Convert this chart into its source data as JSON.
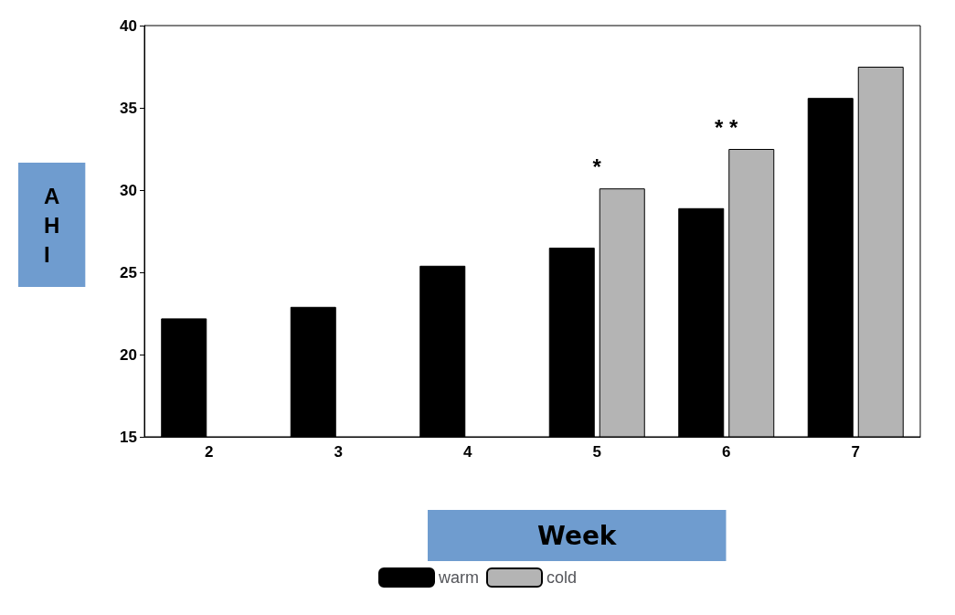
{
  "chart_data": {
    "type": "bar",
    "xlabel": "Week",
    "ylabel": "AHI",
    "categories": [
      "2",
      "3",
      "4",
      "5",
      "6",
      "7"
    ],
    "series": [
      {
        "name": "warm",
        "color": "#000000",
        "values": [
          22.2,
          22.9,
          25.4,
          26.5,
          28.9,
          35.6
        ]
      },
      {
        "name": "cold",
        "color": "#b4b4b4",
        "values": [
          null,
          null,
          null,
          30.1,
          32.5,
          37.5
        ]
      }
    ],
    "ylim": [
      15,
      40
    ],
    "yticks": [
      15,
      20,
      25,
      30,
      35,
      40
    ],
    "grid": false,
    "legend": "bottom",
    "annotations": [
      {
        "text": "*",
        "x": "5",
        "y": 30.1
      },
      {
        "text": "* *",
        "x": "6",
        "y": 32.5
      }
    ]
  }
}
